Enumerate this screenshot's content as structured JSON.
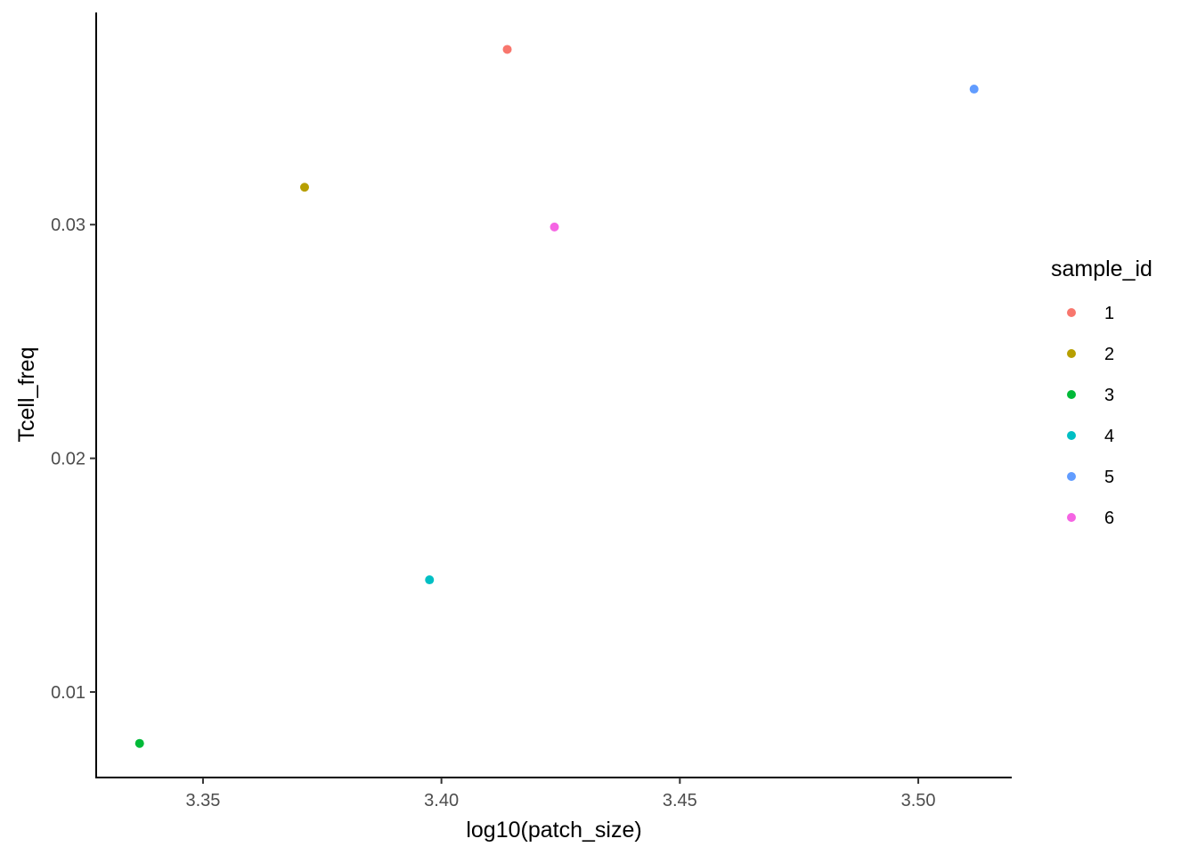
{
  "chart_data": {
    "type": "scatter",
    "title": "",
    "xlabel": "log10(patch_size)",
    "ylabel": "Tcell_freq",
    "xlim": [
      3.3276,
      3.5196
    ],
    "ylim": [
      0.00634,
      0.03908
    ],
    "x_ticks": [
      3.35,
      3.4,
      3.45,
      3.5
    ],
    "x_tick_labels": [
      "3.35",
      "3.40",
      "3.45",
      "3.50"
    ],
    "y_ticks": [
      0.01,
      0.02,
      0.03
    ],
    "y_tick_labels": [
      "0.01",
      "0.02",
      "0.03"
    ],
    "grid": false,
    "legend": {
      "title": "sample_id",
      "position": "right"
    },
    "series": [
      {
        "name": "1",
        "color": "#F8766D",
        "x": [
          3.4138
        ],
        "y": [
          0.0375
        ]
      },
      {
        "name": "2",
        "color": "#B79F00",
        "x": [
          3.3713
        ],
        "y": [
          0.0316
        ]
      },
      {
        "name": "3",
        "color": "#00BA38",
        "x": [
          3.3367
        ],
        "y": [
          0.0078
        ]
      },
      {
        "name": "4",
        "color": "#00BFC4",
        "x": [
          3.3975
        ],
        "y": [
          0.0148
        ]
      },
      {
        "name": "5",
        "color": "#619CFF",
        "x": [
          3.5117
        ],
        "y": [
          0.0358
        ]
      },
      {
        "name": "6",
        "color": "#F564E3",
        "x": [
          3.4237
        ],
        "y": [
          0.0299
        ]
      }
    ]
  }
}
